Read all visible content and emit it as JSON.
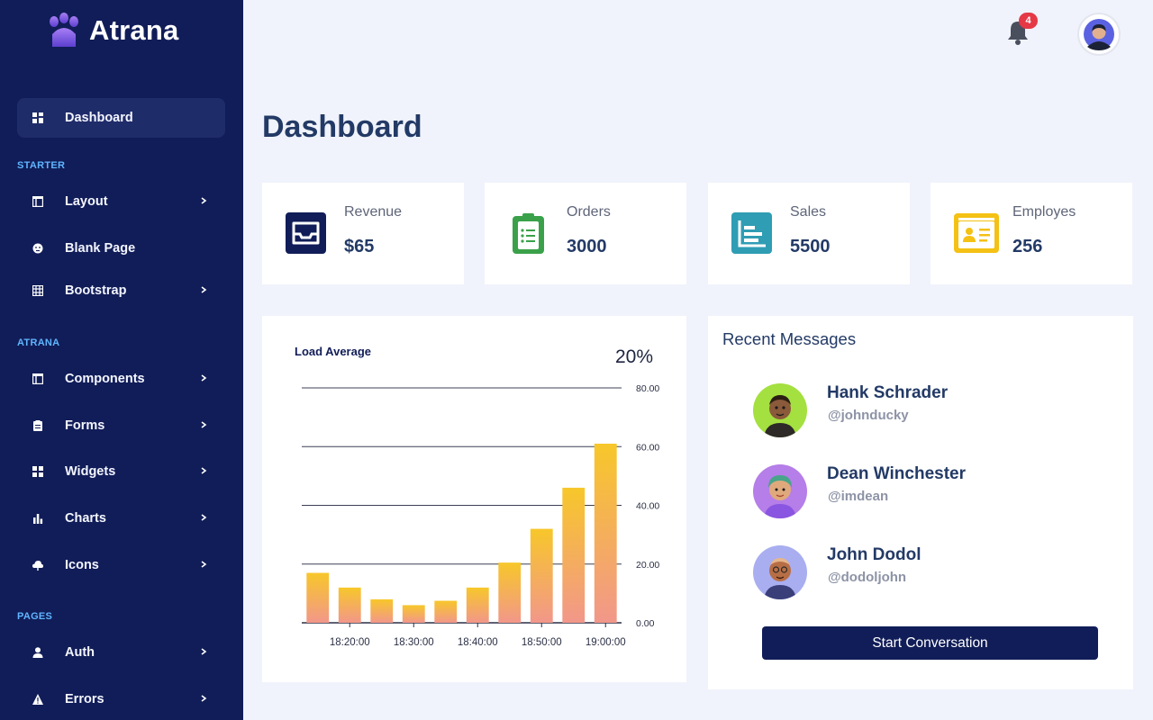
{
  "brand": {
    "name": "Atrana"
  },
  "sidebar": {
    "active": {
      "label": "Dashboard",
      "icon": "dashboard-icon"
    },
    "sections": [
      {
        "label": "STARTER",
        "items": [
          {
            "label": "Layout",
            "icon": "layout-icon",
            "has_children": true
          },
          {
            "label": "Blank Page",
            "icon": "blank-page-icon",
            "has_children": false
          },
          {
            "label": "Bootstrap",
            "icon": "bootstrap-icon",
            "has_children": true
          }
        ]
      },
      {
        "label": "ATRANA",
        "items": [
          {
            "label": "Components",
            "icon": "components-icon",
            "has_children": true
          },
          {
            "label": "Forms",
            "icon": "forms-icon",
            "has_children": true
          },
          {
            "label": "Widgets",
            "icon": "widgets-icon",
            "has_children": true
          },
          {
            "label": "Charts",
            "icon": "charts-icon",
            "has_children": true
          },
          {
            "label": "Icons",
            "icon": "icons-icon",
            "has_children": true
          }
        ]
      },
      {
        "label": "PAGES",
        "items": [
          {
            "label": "Auth",
            "icon": "user-icon",
            "has_children": true
          },
          {
            "label": "Errors",
            "icon": "warning-icon",
            "has_children": true
          }
        ]
      }
    ]
  },
  "header": {
    "notification_count": "4"
  },
  "page": {
    "title": "Dashboard"
  },
  "stats": [
    {
      "label": "Revenue",
      "value": "$65",
      "icon": "inbox-icon",
      "color": "#111d58"
    },
    {
      "label": "Orders",
      "value": "3000",
      "icon": "clipboard-icon",
      "color": "#3aa14a"
    },
    {
      "label": "Sales",
      "value": "5500",
      "icon": "bar-chart-icon",
      "color": "#2f9db4"
    },
    {
      "label": "Employes",
      "value": "256",
      "icon": "id-card-icon",
      "color": "#f4c114"
    }
  ],
  "load_average": {
    "title": "Load Average",
    "percent": "20%"
  },
  "chart_data": {
    "type": "bar",
    "title": "Load Average",
    "categories": [
      "",
      "18:20:00",
      "",
      "18:30:00",
      "",
      "18:40:00",
      "",
      "18:50:00",
      "",
      "19:00:00"
    ],
    "values": [
      17,
      12,
      8,
      6,
      7.5,
      12,
      20.5,
      32,
      46,
      61
    ],
    "y_ticks": [
      "0.00",
      "20.00",
      "40.00",
      "60.00",
      "80.00"
    ],
    "ylim": [
      0,
      80
    ],
    "y_axis_position": "right",
    "grid": true,
    "bar_gradient": [
      "#f7c72a",
      "#f2978a"
    ]
  },
  "messages": {
    "title": "Recent Messages",
    "items": [
      {
        "name": "Hank Schrader",
        "handle": "@johnducky",
        "avatar_bg": "#a4e040"
      },
      {
        "name": "Dean Winchester",
        "handle": "@imdean",
        "avatar_bg": "#b57ee8"
      },
      {
        "name": "John Dodol",
        "handle": "@dodoljohn",
        "avatar_bg": "#a8aef0"
      }
    ],
    "button_label": "Start Conversation"
  }
}
